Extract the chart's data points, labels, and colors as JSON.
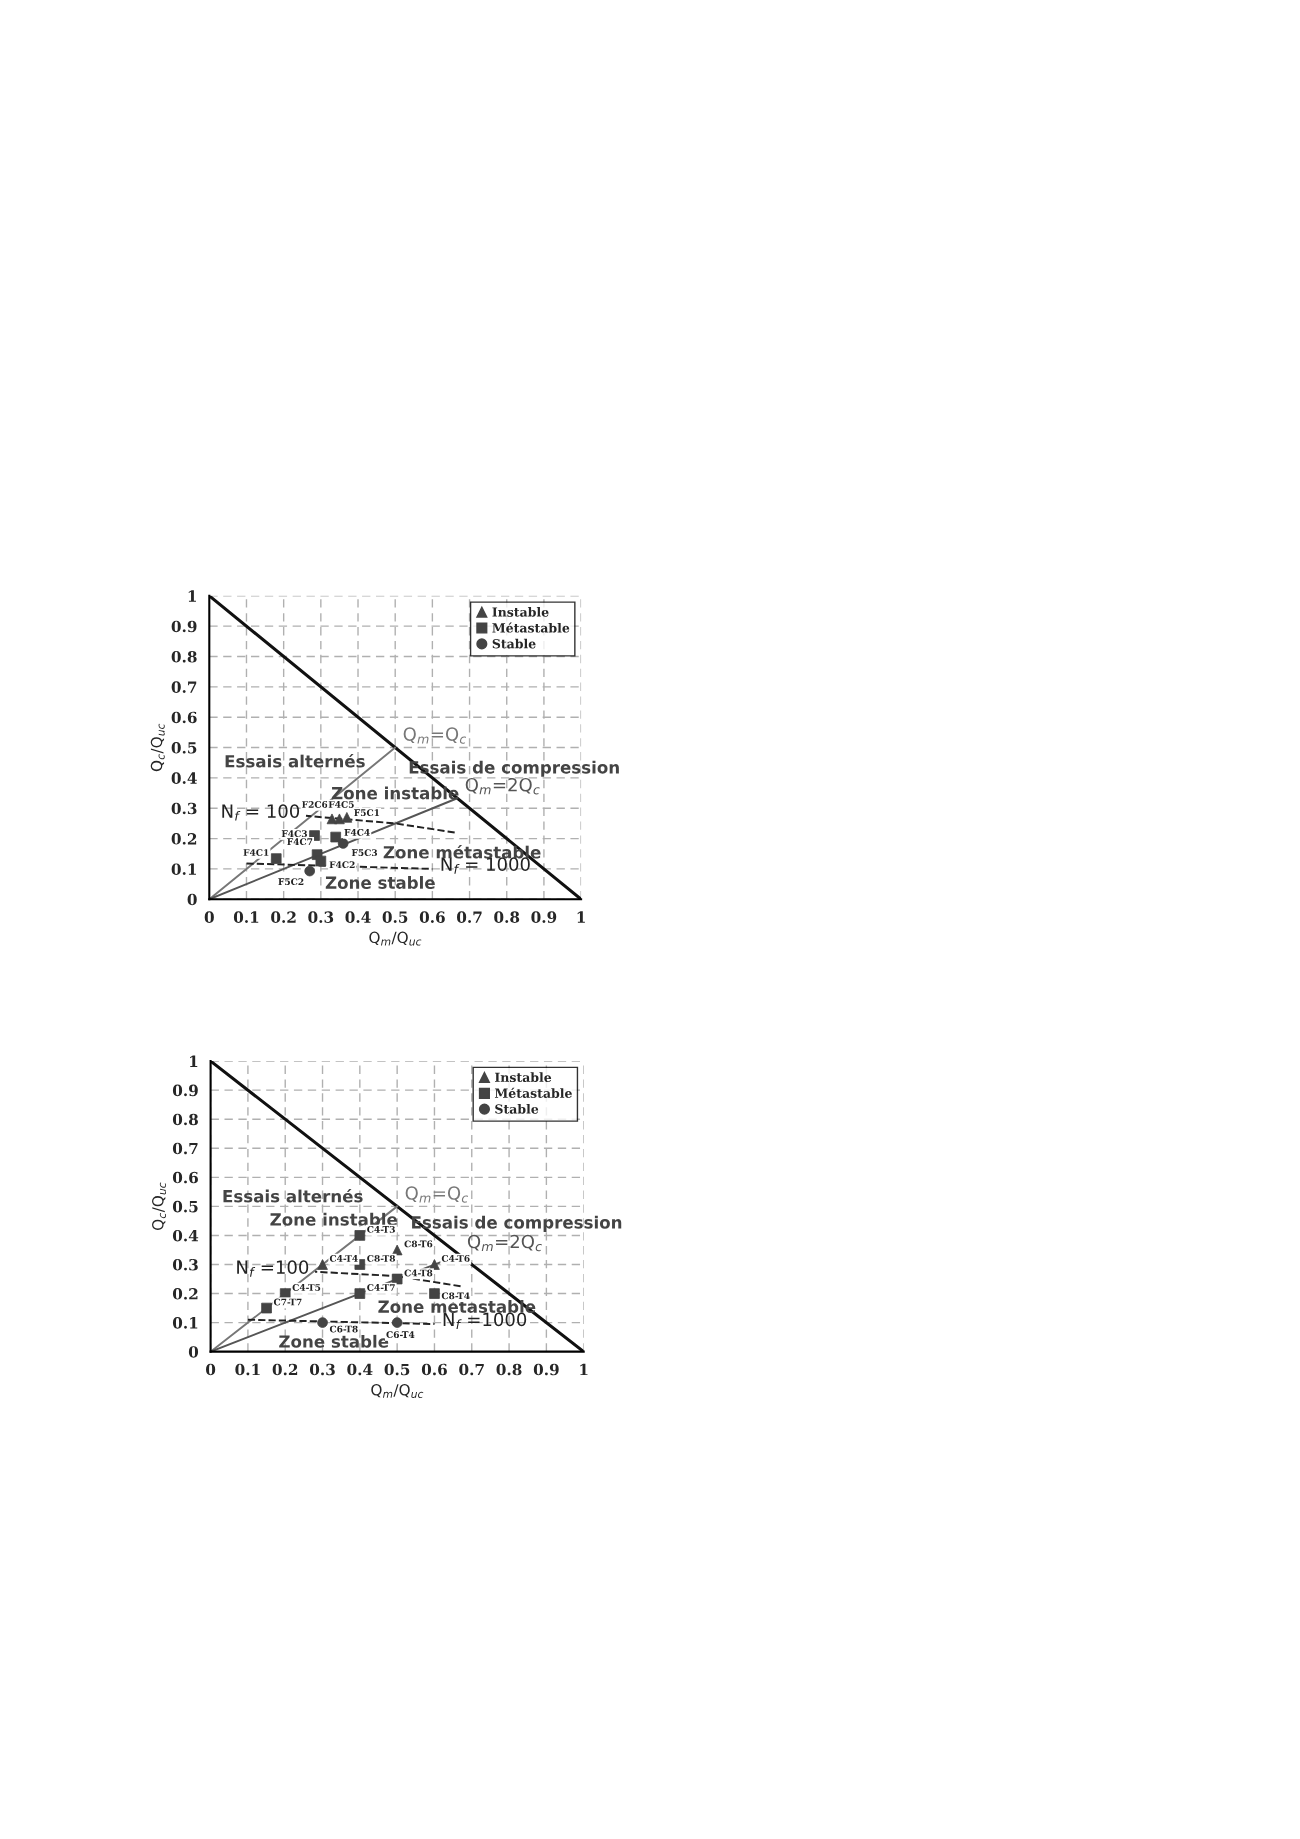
{
  "chart_data": [
    {
      "type": "scatter",
      "xlabel": "Q$_{m}$/Q$_{uc}$",
      "ylabel": "Q$_{c}$/Q$_{uc}$",
      "xlim": [
        0,
        1
      ],
      "ylim": [
        0,
        1
      ],
      "xticks": [
        0,
        0.1,
        0.2,
        0.3,
        0.4,
        0.5,
        0.6,
        0.7,
        0.8,
        0.9,
        1
      ],
      "yticks": [
        0,
        0.1,
        0.2,
        0.3,
        0.4,
        0.5,
        0.6,
        0.7,
        0.8,
        0.9,
        1
      ],
      "grid": true,
      "legend": "top right",
      "series": [
        {
          "type": "line",
          "color": "#111111",
          "x": [
            0,
            1
          ],
          "values": [
            1,
            0
          ],
          "marker": "none",
          "line_style": "solid"
        },
        {
          "type": "line",
          "name": "Q$_{m}$=Q$_{c}$",
          "color": "#777777",
          "x": [
            0,
            0.5
          ],
          "values": [
            0,
            0.5
          ],
          "marker": "none",
          "line_style": "solid"
        },
        {
          "type": "line",
          "name": "Q$_{m}$=2Q$_{c}$",
          "color": "#555555",
          "x": [
            0,
            0.667
          ],
          "values": [
            0,
            0.333
          ],
          "marker": "none",
          "line_style": "solid"
        },
        {
          "type": "line",
          "name": "N$_{f}$ = 100",
          "color": "#222222",
          "x": [
            0.66,
            0.5,
            0.26
          ],
          "values": [
            0.22,
            0.25,
            0.275
          ],
          "marker": "none",
          "line_style": "dashed"
        },
        {
          "type": "line",
          "name": "N$_{f}$ = 1000",
          "color": "#222222",
          "x": [
            0.1,
            0.6
          ],
          "values": [
            0.118,
            0.1
          ],
          "marker": "none",
          "line_style": "dashed"
        },
        {
          "name": "Instable",
          "color": "#444444",
          "marker": "triangle",
          "x": [
            0.33,
            0.35,
            0.37
          ],
          "values": [
            0.265,
            0.265,
            0.27
          ],
          "value_labels": [
            "F2C6",
            "F4C5",
            "F5C1"
          ]
        },
        {
          "name": "Métastable",
          "color": "#444444",
          "marker": "square",
          "x": [
            0.283,
            0.34,
            0.18,
            0.29,
            0.3
          ],
          "values": [
            0.21,
            0.205,
            0.134,
            0.147,
            0.126
          ],
          "value_labels": [
            "F4C3",
            "F4C4",
            "F4C1",
            "F4C7",
            "F4C2"
          ]
        },
        {
          "name": "Stable",
          "color": "#444444",
          "marker": "circle",
          "x": [
            0.27,
            0.36
          ],
          "values": [
            0.093,
            0.184
          ],
          "value_labels": [
            "F5C2",
            "F5C3"
          ]
        }
      ],
      "annotations": [
        "Essais alternés",
        "Essais de compression",
        "Zone instable",
        "Zone métastable",
        "Zone stable"
      ]
    },
    {
      "type": "scatter",
      "xlabel": "Q$_{m}$/Q$_{uc}$",
      "ylabel": "Q$_{c}$/Q$_{uc}$",
      "xlim": [
        0,
        1
      ],
      "ylim": [
        0,
        1
      ],
      "xticks": [
        0,
        0.1,
        0.2,
        0.3,
        0.4,
        0.5,
        0.6,
        0.7,
        0.8,
        0.9,
        1
      ],
      "yticks": [
        0,
        0.1,
        0.2,
        0.3,
        0.4,
        0.5,
        0.6,
        0.7,
        0.8,
        0.9,
        1
      ],
      "grid": true,
      "legend": "top right",
      "series": [
        {
          "type": "line",
          "color": "#111111",
          "x": [
            0,
            1
          ],
          "values": [
            1,
            0
          ],
          "marker": "none",
          "line_style": "solid"
        },
        {
          "type": "line",
          "name": "Q$_{m}$=Q$_{c}$",
          "color": "#777777",
          "x": [
            0,
            0.5
          ],
          "values": [
            0,
            0.5
          ],
          "marker": "none",
          "line_style": "solid"
        },
        {
          "type": "line",
          "name": "Q$_{m}$=2Q$_{c}$",
          "color": "#555555",
          "x": [
            0,
            0.667
          ],
          "values": [
            0,
            0.333
          ],
          "marker": "none",
          "line_style": "solid"
        },
        {
          "type": "line",
          "name": "N$_{f}$ =100",
          "color": "#222222",
          "x": [
            0.67,
            0.5,
            0.28
          ],
          "values": [
            0.225,
            0.26,
            0.275
          ],
          "marker": "none",
          "line_style": "dashed"
        },
        {
          "type": "line",
          "name": "N$_{f}$ =1000",
          "color": "#222222",
          "x": [
            0.1,
            0.6
          ],
          "values": [
            0.11,
            0.095
          ],
          "marker": "none",
          "line_style": "dashed"
        },
        {
          "name": "Instable",
          "color": "#444444",
          "marker": "triangle",
          "x": [
            0.3,
            0.5,
            0.6
          ],
          "values": [
            0.3,
            0.35,
            0.3
          ],
          "value_labels": [
            "C4-T4",
            "C8-T6",
            "C4-T6"
          ]
        },
        {
          "name": "Métastable",
          "color": "#444444",
          "marker": "square",
          "x": [
            0.4,
            0.4,
            0.5,
            0.2,
            0.15,
            0.4,
            0.6
          ],
          "values": [
            0.4,
            0.3,
            0.25,
            0.2,
            0.15,
            0.2,
            0.2
          ],
          "value_labels": [
            "C4-T3",
            "C8-T8",
            "C4-T8",
            "C4-T5",
            "C7-T7",
            "C4-T7",
            "C8-T4"
          ]
        },
        {
          "name": "Stable",
          "color": "#444444",
          "marker": "circle",
          "x": [
            0.3,
            0.5
          ],
          "values": [
            0.1,
            0.1
          ],
          "value_labels": [
            "C6-T8",
            "C6-T4"
          ]
        }
      ],
      "annotations": [
        "Essais alternés",
        "Essais de compression",
        "Zone instable",
        "Zone métastable",
        "Zone stable"
      ]
    }
  ]
}
